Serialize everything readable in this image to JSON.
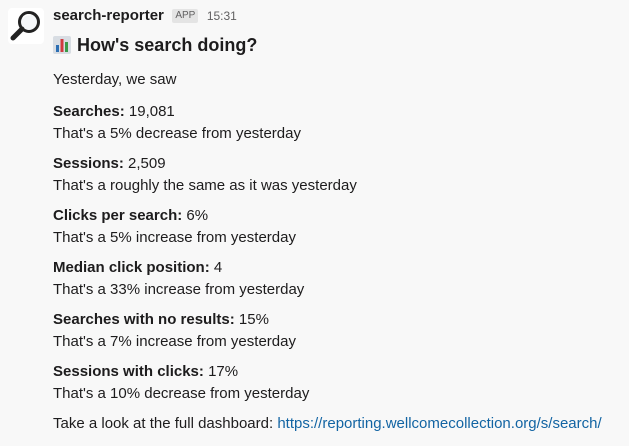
{
  "message": {
    "app_name": "search-reporter",
    "badge": "APP",
    "timestamp": "15:31",
    "avatar_icon": "magnifying-glass-icon",
    "title_icon": "bar-chart-icon",
    "title": "How's search doing?",
    "intro": "Yesterday, we saw",
    "metrics": [
      {
        "label": "Searches:",
        "value": "19,081",
        "change": "That's a 5% decrease from yesterday"
      },
      {
        "label": "Sessions:",
        "value": "2,509",
        "change": "That's a roughly the same as it was yesterday"
      },
      {
        "label": "Clicks per search:",
        "value": "6%",
        "change": "That's a 5% increase from yesterday"
      },
      {
        "label": "Median click position:",
        "value": "4",
        "change": "That's a 33% increase from yesterday"
      },
      {
        "label": "Searches with no results:",
        "value": "15%",
        "change": "That's a 7% increase from yesterday"
      },
      {
        "label": "Sessions with clicks:",
        "value": "17%",
        "change": "That's a 10% decrease from yesterday"
      }
    ],
    "footer_text": "Take a look at the full dashboard:",
    "footer_link": "https://reporting.wellcomecollection.org/s/search/"
  },
  "colors": {
    "background": "#f8f8f8",
    "text": "#1d1c1d",
    "muted": "#616061",
    "link": "#1264a3",
    "badge_bg": "#e4e4e4"
  }
}
